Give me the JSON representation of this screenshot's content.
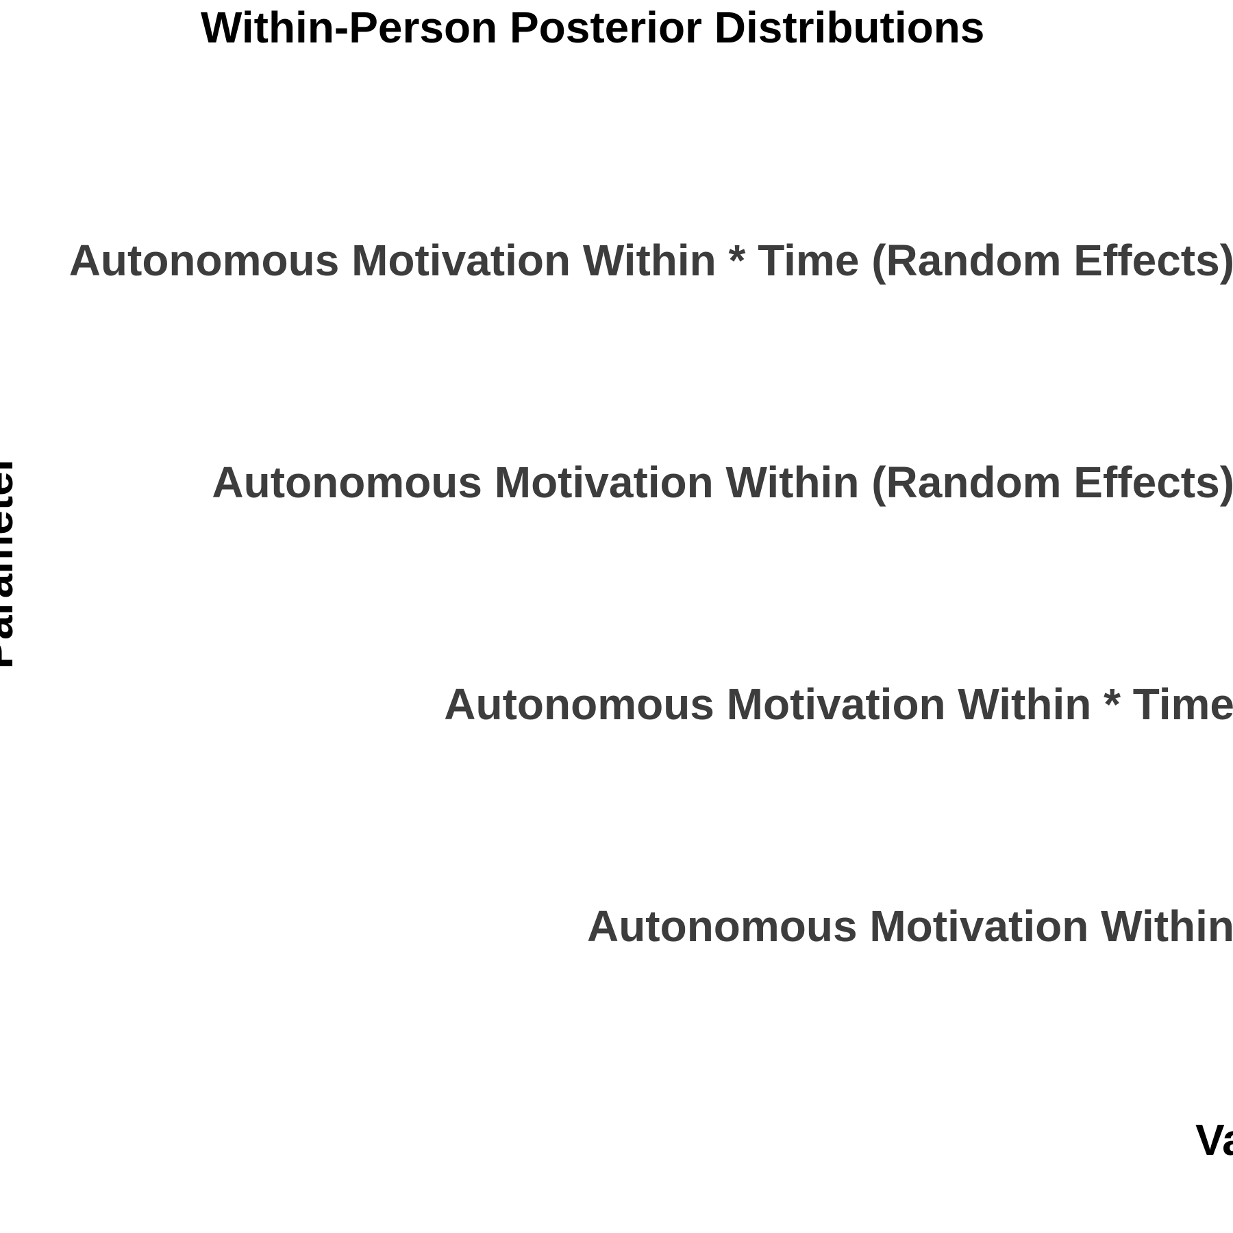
{
  "chart_data": {
    "type": "ridgeline",
    "title": "Within-Person Posterior Distributions",
    "xlabel": "Value",
    "ylabel": "Parameter",
    "categories": [
      "Autonomous Motivation Within * Time (Random Effects)",
      "Autonomous Motivation Within (Random Effects)",
      "Autonomous Motivation Within * Time",
      "Autonomous Motivation Within"
    ],
    "grid": false,
    "legend": "none"
  }
}
